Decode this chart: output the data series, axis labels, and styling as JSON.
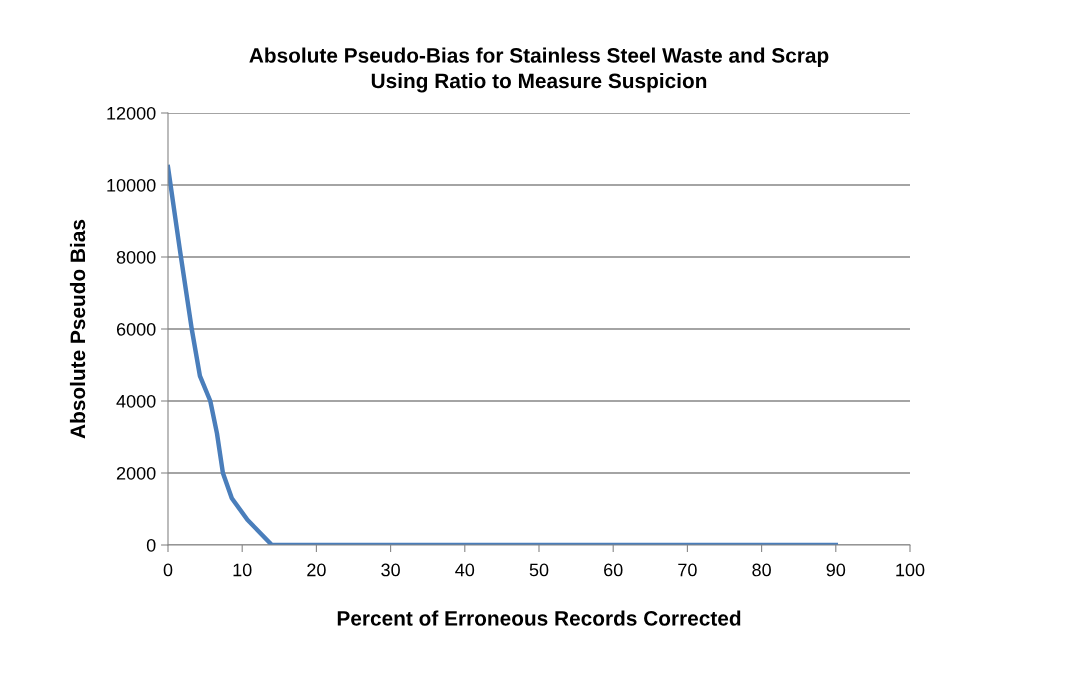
{
  "chart_data": {
    "type": "line",
    "title": "Absolute Pseudo-Bias for Stainless Steel Waste and Scrap\nUsing Ratio to Measure Suspicion",
    "xlabel": "Percent of Erroneous Records Corrected",
    "ylabel": "Absolute Pseudo Bias",
    "series": [
      {
        "color": "#4a7ebb",
        "x": [
          0,
          1.6,
          3.2,
          4.3,
          5.7,
          6.6,
          7.4,
          8.6,
          10.7,
          14,
          20,
          30,
          40,
          50,
          60,
          70,
          80,
          90
        ],
        "values": [
          10500,
          8200,
          6000,
          4700,
          4000,
          3100,
          2000,
          1300,
          700,
          0,
          0,
          0,
          0,
          0,
          0,
          0,
          0,
          0
        ]
      }
    ],
    "xlim": [
      0,
      100
    ],
    "xticks": [
      0,
      10,
      20,
      30,
      40,
      50,
      60,
      70,
      80,
      90,
      100
    ],
    "ylim": [
      0,
      12000
    ],
    "yticks": [
      0,
      2000,
      4000,
      6000,
      8000,
      10000,
      12000
    ],
    "grid": "y",
    "legend": false,
    "marker": "none",
    "line_style": "solid"
  }
}
